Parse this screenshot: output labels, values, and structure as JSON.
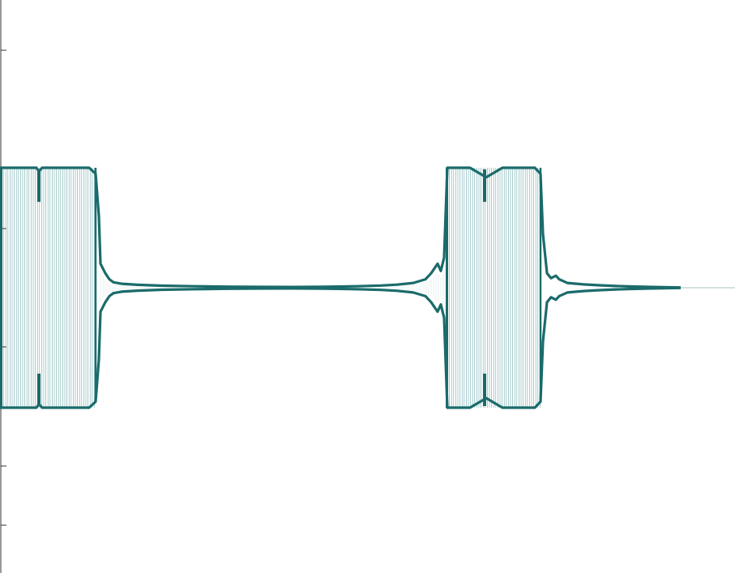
{
  "chart_data": {
    "type": "line",
    "title": "",
    "xlabel": "",
    "ylabel": "",
    "grid": false,
    "legend": "none",
    "xlim": [
      0,
      907
    ],
    "ylim": [
      -1.2,
      1.2
    ],
    "y_ticks": [
      -1.0,
      -0.5,
      0.0,
      0.5,
      1.0
    ],
    "colors": {
      "envelope": "#1b6b6b",
      "trace": "#3c8f8f",
      "baseline": "#b8cccc",
      "axis": "#333333"
    },
    "series": [
      {
        "name": "",
        "kind": "envelope",
        "x": [
          0,
          20,
          45,
          48,
          52,
          70,
          90,
          110,
          118,
          122,
          124,
          127,
          130,
          135,
          140,
          150,
          170,
          200,
          240,
          280,
          320,
          360,
          400,
          440,
          470,
          490,
          510,
          525,
          532,
          536,
          540,
          544,
          548,
          552,
          560,
          580,
          600,
          620,
          640,
          660,
          667,
          670,
          675,
          680,
          686,
          690,
          700,
          720,
          740,
          760,
          780,
          800,
          820,
          840
        ],
        "upper": [
          1.0,
          1.0,
          1.0,
          0.97,
          1.0,
          1.0,
          1.0,
          1.0,
          0.95,
          0.6,
          0.2,
          0.16,
          0.12,
          0.07,
          0.045,
          0.033,
          0.024,
          0.017,
          0.012,
          0.009,
          0.007,
          0.006,
          0.008,
          0.012,
          0.018,
          0.026,
          0.04,
          0.07,
          0.12,
          0.16,
          0.2,
          0.14,
          0.25,
          1.0,
          1.0,
          1.0,
          0.92,
          1.0,
          1.0,
          1.0,
          0.95,
          0.45,
          0.12,
          0.08,
          0.1,
          0.07,
          0.04,
          0.028,
          0.02,
          0.014,
          0.01,
          0.007,
          0.004,
          0.002
        ],
        "lower": [
          -1.0,
          -1.0,
          -1.0,
          -0.97,
          -1.0,
          -1.0,
          -1.0,
          -1.0,
          -0.95,
          -0.6,
          -0.2,
          -0.16,
          -0.12,
          -0.07,
          -0.045,
          -0.033,
          -0.024,
          -0.017,
          -0.012,
          -0.009,
          -0.007,
          -0.006,
          -0.008,
          -0.012,
          -0.018,
          -0.026,
          -0.04,
          -0.07,
          -0.12,
          -0.16,
          -0.2,
          -0.14,
          -0.25,
          -1.0,
          -1.0,
          -1.0,
          -0.92,
          -1.0,
          -1.0,
          -1.0,
          -0.95,
          -0.45,
          -0.12,
          -0.08,
          -0.1,
          -0.07,
          -0.04,
          -0.028,
          -0.02,
          -0.014,
          -0.01,
          -0.007,
          -0.004,
          -0.002
        ]
      }
    ],
    "bursts": [
      {
        "start": 0,
        "end": 118,
        "amplitude": 1.0,
        "notch_x": 48
      },
      {
        "start": 550,
        "end": 667,
        "amplitude": 1.0,
        "notch_x": 598
      }
    ],
    "baseline_tail": {
      "x_start": 840,
      "x_end": 907,
      "value": 0.0
    }
  }
}
